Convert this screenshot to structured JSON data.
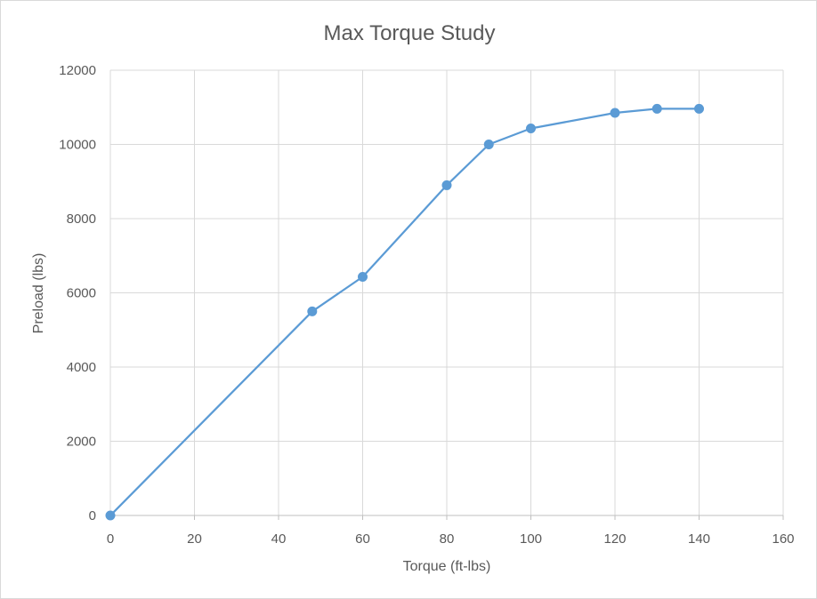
{
  "chart_data": {
    "type": "scatter",
    "title": "Max Torque Study",
    "xlabel": "Torque (ft-lbs)",
    "ylabel": "Preload (lbs)",
    "xlim": [
      0,
      160
    ],
    "ylim": [
      0,
      12000
    ],
    "x_ticks": [
      0,
      20,
      40,
      60,
      80,
      100,
      120,
      140,
      160
    ],
    "y_ticks": [
      0,
      2000,
      4000,
      6000,
      8000,
      10000,
      12000
    ],
    "grid": true,
    "series": [
      {
        "color": "#5b9bd5",
        "x": [
          0,
          48,
          60,
          80,
          90,
          100,
          120,
          130,
          140
        ],
        "y": [
          0,
          5500,
          6430,
          8900,
          10000,
          10430,
          10850,
          10960,
          10960
        ]
      }
    ]
  }
}
